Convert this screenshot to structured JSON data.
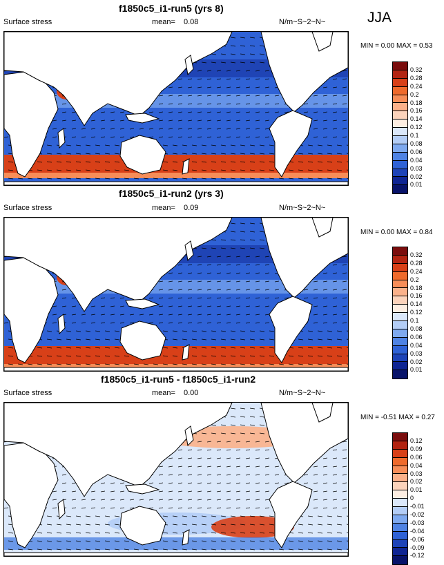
{
  "season": "JJA",
  "units": "N/m~S~2~N~",
  "panels": [
    {
      "title": "f1850c5_i1-run5 (yrs 8)",
      "label": "Surface stress",
      "mean_label": "mean=",
      "mean": "0.08",
      "minmax": "MIN =   0.00 MAX =   0.53",
      "palette": "abs",
      "ticks": [
        "0.32",
        "0.28",
        "0.24",
        "0.2",
        "0.18",
        "0.16",
        "0.14",
        "0.12",
        "0.1",
        "0.08",
        "0.06",
        "0.04",
        "0.03",
        "0.02",
        "0.01"
      ]
    },
    {
      "title": "f1850c5_i1-run2 (yrs 3)",
      "label": "Surface stress",
      "mean_label": "mean=",
      "mean": "0.09",
      "minmax": "MIN =   0.00 MAX =   0.84",
      "palette": "abs",
      "ticks": [
        "0.32",
        "0.28",
        "0.24",
        "0.2",
        "0.18",
        "0.16",
        "0.14",
        "0.12",
        "0.1",
        "0.08",
        "0.06",
        "0.04",
        "0.03",
        "0.02",
        "0.01"
      ]
    },
    {
      "title": "f1850c5_i1-run5 - f1850c5_i1-run2",
      "label": "Surface stress",
      "mean_label": "mean=",
      "mean": "0.00",
      "minmax": "MIN =  -0.51 MAX =   0.27",
      "palette": "diff",
      "ticks": [
        "0.12",
        "0.09",
        "0.06",
        "0.04",
        "0.03",
        "0.02",
        "0.01",
        "0",
        "-0.01",
        "-0.02",
        "-0.03",
        "-0.04",
        "-0.06",
        "-0.09",
        "-0.12"
      ]
    }
  ],
  "colors": {
    "abs": [
      "#7a0d0d",
      "#b32412",
      "#d84018",
      "#ef6a2c",
      "#f78d58",
      "#fbb18a",
      "#fcd3bb",
      "#fdeee2",
      "#dbe8fa",
      "#b3cdf6",
      "#7ea9ef",
      "#4f83e4",
      "#2f62d6",
      "#1d43b8",
      "#0f2593",
      "#08136a"
    ],
    "diff": [
      "#7a0d0d",
      "#b32412",
      "#d84018",
      "#ef6a2c",
      "#f78d58",
      "#fbb18a",
      "#fcd3bb",
      "#fdeee2",
      "#dbe8fa",
      "#b3cdf6",
      "#7ea9ef",
      "#4f83e4",
      "#2f62d6",
      "#1d43b8",
      "#0f2593",
      "#08136a"
    ],
    "land": "#ffffff",
    "ocean_abs": "#2f62d6",
    "ocean_diff": "#dbe8fa",
    "band_high": "#d84018",
    "band_mid": "#7ea9ef",
    "band_low": "#0f2593"
  }
}
